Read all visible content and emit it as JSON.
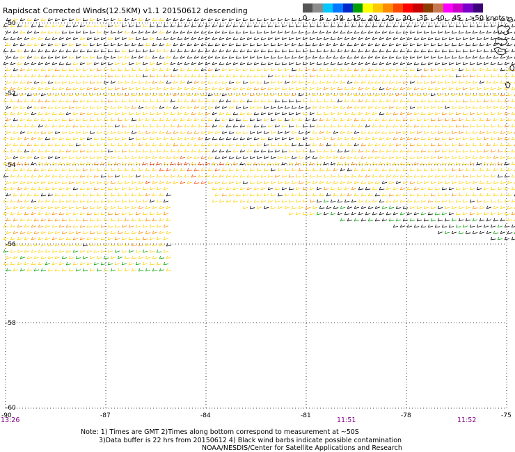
{
  "header": {
    "title": "Rapidscat Corrected Winds(12.5KM) v1.1 20150612 descending"
  },
  "legend": {
    "ticks": [
      "0",
      "5",
      "10",
      "15",
      "20",
      "25",
      "30",
      "35",
      "40",
      "45",
      ">50 knots"
    ],
    "colors": [
      "#555555",
      "#8c8c8c",
      "#00c8ff",
      "#0078ff",
      "#0028c8",
      "#00a000",
      "#ffff00",
      "#ffc800",
      "#ff8c00",
      "#ff4600",
      "#ff0000",
      "#c80000",
      "#8c3c00",
      "#c87850",
      "#ff00ff",
      "#c800c8",
      "#7800c8",
      "#3c0078"
    ]
  },
  "map": {
    "lat_labels": [
      "-50",
      "-52",
      "-54",
      "-56",
      "-58",
      "-60"
    ],
    "lon_labels": [
      "-90",
      "-87",
      "-84",
      "-81",
      "-78",
      "-75"
    ],
    "times": [
      "13:26",
      "11:51",
      "11:52"
    ],
    "time_color": "#800080"
  },
  "notes": {
    "line1": "Note: 1) Times are GMT 2)Times along bottom correspond to measurement at ~50S",
    "line2": "3)Data buffer is 22 hrs from 20150612 4) Black wind barbs indicate possible contamination",
    "line3": "NOAA/NESDIS/Center for Satellite Applications and Research"
  }
}
